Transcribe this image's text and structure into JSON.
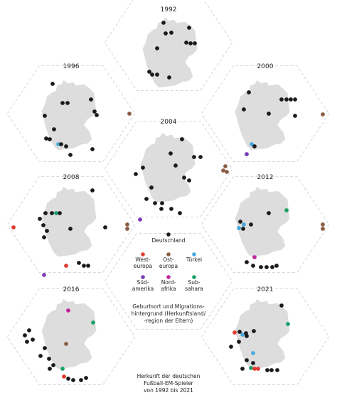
{
  "years": [
    "1992",
    "1996",
    "2000",
    "2004",
    "2008",
    "2012",
    "2016",
    "2021"
  ],
  "legend": {
    "deutschland": "Deutschland",
    "westeuropa": [
      "West-",
      "europa"
    ],
    "osteuropa": [
      "Ost-",
      "europa"
    ],
    "tuerkei": [
      "Türkei"
    ],
    "suedamerika": [
      "Süd-",
      "amerika"
    ],
    "nordafrika": [
      "Nord-",
      "afrika"
    ],
    "subsahara": [
      "Sub-",
      "sahara"
    ]
  },
  "colors": {
    "deutschland": "#1a1a1a",
    "westeuropa": "#e03a2f",
    "osteuropa": "#8b5e44",
    "tuerkei": "#46a9dd",
    "suedamerika": "#7a3bb8",
    "nordafrika": "#c0259b",
    "subsahara": "#1aa066",
    "map": "#dddddd",
    "frame": "#cccccc"
  },
  "caption_legend": [
    "Geburtsort und Migrations-",
    "hintergrund (Herkunftsland/",
    "-region der Eltern)"
  ],
  "caption_title": [
    "Herkunft der deutschen",
    "Fußball-EM-Spieler",
    "von 1992 bis 2021"
  ]
}
